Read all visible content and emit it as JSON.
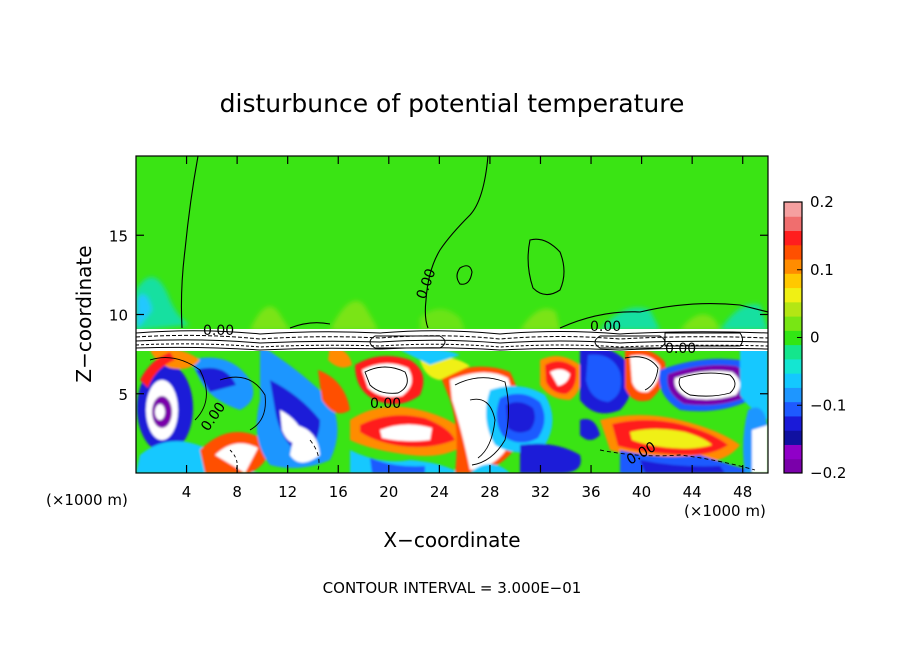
{
  "chart_data": {
    "type": "heatmap",
    "title": "disturbunce of potential temperature",
    "xlabel": "X−coordinate",
    "ylabel": "Z−coordinate",
    "x_unit_label": "(×1000 m)",
    "y_unit_label": "(×1000 m)",
    "xlim": [
      0,
      50
    ],
    "ylim": [
      0,
      20
    ],
    "x_ticks": [
      4,
      8,
      12,
      16,
      20,
      24,
      28,
      32,
      36,
      40,
      44,
      48
    ],
    "y_ticks": [
      5,
      10,
      15
    ],
    "x_tick_labels": [
      "4",
      "8",
      "12",
      "16",
      "20",
      "24",
      "28",
      "32",
      "36",
      "40",
      "44",
      "48"
    ],
    "y_tick_labels": [
      "5",
      "10",
      "15"
    ],
    "colorbar": {
      "range": [
        -0.2,
        0.2
      ],
      "tick_labels": [
        "0.2",
        "0.1",
        "0",
        "−0.1",
        "−0.2"
      ],
      "tick_values": [
        0.2,
        0.1,
        0,
        -0.1,
        -0.2
      ],
      "colors": [
        "#7a00aa",
        "#9000c8",
        "#1010a0",
        "#1a1ad8",
        "#1e5aff",
        "#1e96ff",
        "#14c8ff",
        "#14e6d2",
        "#14e68c",
        "#32e614",
        "#78e614",
        "#b4e614",
        "#f0f014",
        "#ffc800",
        "#ff8c00",
        "#ff5000",
        "#ff1e1e",
        "#f06e6e",
        "#f5a0a0"
      ]
    },
    "contour_labels": [
      "0.00",
      "0.00",
      "0.00",
      "0.00",
      "0.00",
      "0.00",
      "0.00"
    ],
    "footer": "CONTOUR INTERVAL = 3.000E−01"
  }
}
